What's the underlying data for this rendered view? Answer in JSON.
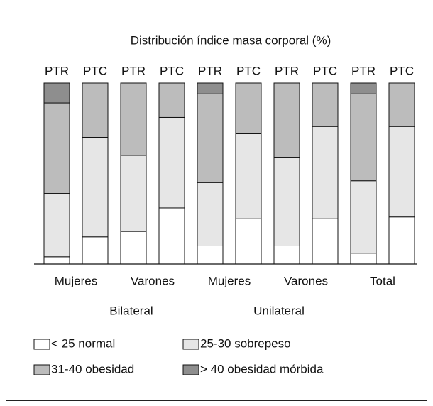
{
  "chart_data": {
    "type": "stacked_bar",
    "title": "Distribución índice masa corporal (%)",
    "categories": [
      "PTR",
      "PTC",
      "PTR",
      "PTC",
      "PTR",
      "PTC",
      "PTR",
      "PTC",
      "PTR",
      "PTC"
    ],
    "groups": [
      "Mujeres",
      "Varones",
      "Mujeres",
      "Varones",
      "Total"
    ],
    "supergroups": [
      "Bilateral",
      "Unilateral"
    ],
    "series": [
      {
        "name": "< 25 normal",
        "color": "#ffffff",
        "values": [
          4,
          15,
          18,
          31,
          10,
          25,
          10,
          25,
          6,
          26
        ]
      },
      {
        "name": "25-30 sobrepeso",
        "color": "#e6e6e6",
        "values": [
          35,
          55,
          42,
          50,
          35,
          47,
          49,
          51,
          40,
          50
        ]
      },
      {
        "name": "31-40 obesidad",
        "color": "#bcbcbc",
        "values": [
          50,
          30,
          40,
          19,
          49,
          28,
          41,
          24,
          48,
          24
        ]
      },
      {
        "name": "> 40 obesidad mórbida",
        "color": "#8e8e8e",
        "values": [
          11,
          0,
          0,
          0,
          6,
          0,
          0,
          0,
          6,
          0
        ]
      }
    ]
  }
}
